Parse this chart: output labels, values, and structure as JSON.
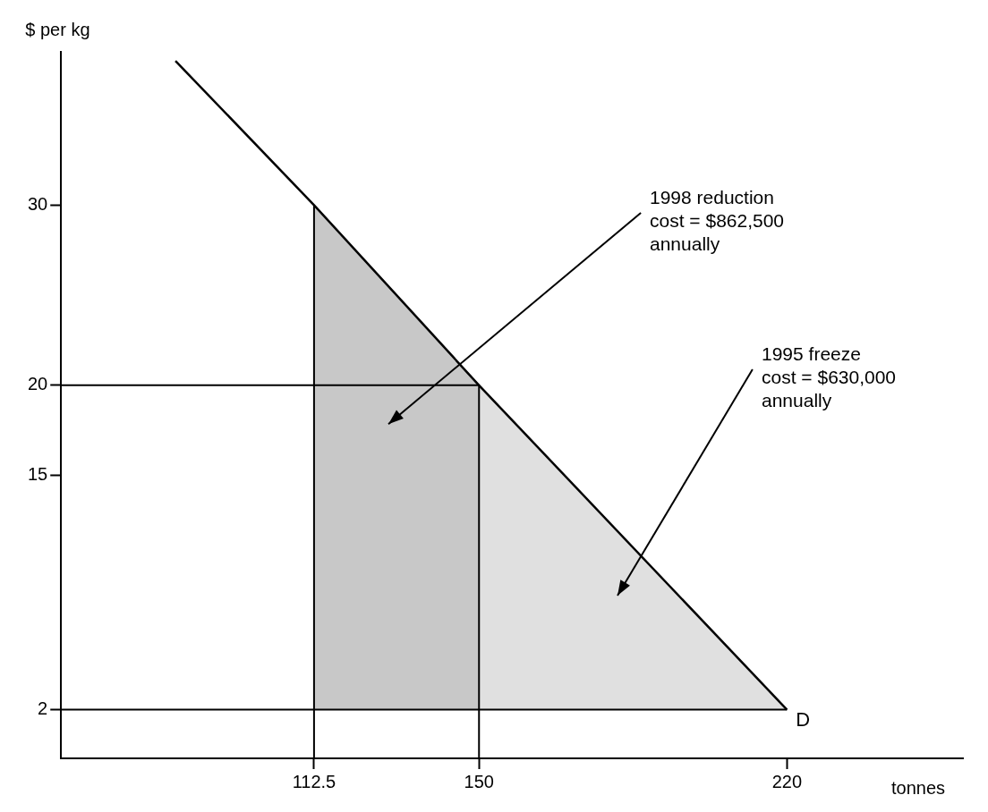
{
  "chart_data": {
    "type": "line",
    "xlabel": "tonnes",
    "ylabel": "$ per kg",
    "xlim": [
      55,
      260
    ],
    "ylim": [
      -0.7,
      38.5
    ],
    "xticks": [
      112.5,
      150,
      220
    ],
    "yticks": [
      2,
      15,
      20,
      30
    ],
    "grid": false,
    "legend": false,
    "marker": "none",
    "line_style": "solid",
    "series": [
      {
        "name": "D",
        "type": "line",
        "color": "#000000",
        "x": [
          81,
          112.5,
          150,
          220
        ],
        "values": [
          38,
          30,
          20,
          2
        ]
      },
      {
        "type": "area",
        "color": "#c8c8c8",
        "x": [
          112.5,
          150
        ],
        "values": [
          30,
          20
        ]
      },
      {
        "type": "area",
        "color": "#e0e0e0",
        "x": [
          150,
          220
        ],
        "values": [
          20,
          2
        ]
      }
    ],
    "ref_lines": [
      {
        "axis": "x",
        "value": 112.5
      },
      {
        "axis": "x",
        "value": 150
      },
      {
        "axis": "y",
        "value": 20
      },
      {
        "axis": "y",
        "value": 2
      }
    ],
    "annotations": [
      "1998 reduction\ncost = $862,500\nannually",
      "1995 freeze\ncost = $630,000\nannually"
    ]
  }
}
